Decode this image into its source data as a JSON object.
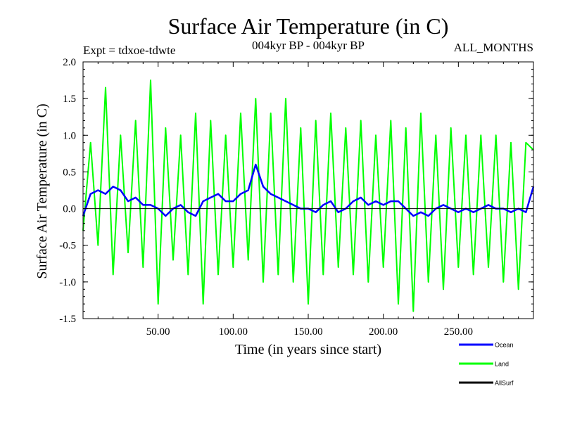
{
  "chart_data": {
    "type": "line",
    "title": "Surface Air Temperature (in C)",
    "experiment_label": "Expt = tdxoe-tdwte",
    "period_label": "004kyr BP - 004kyr BP",
    "season_label": "ALL_MONTHS",
    "xlabel": "Time (in years since start)",
    "ylabel": "Surface Air Temperature (in C)",
    "xlim": [
      0,
      300
    ],
    "ylim": [
      -1.5,
      2.0
    ],
    "x_ticks": [
      50,
      100,
      150,
      200,
      250
    ],
    "x_tick_labels": [
      "50.00",
      "100.00",
      "150.00",
      "200.00",
      "250.00"
    ],
    "y_ticks": [
      -1.5,
      -1.0,
      -0.5,
      0.0,
      0.5,
      1.0,
      1.5,
      2.0
    ],
    "y_tick_labels": [
      "-1.5",
      "-1.0",
      "-0.5",
      "0.0",
      "0.5",
      "1.0",
      "1.5",
      "2.0"
    ],
    "zero_line": true,
    "legend_position": "bottom-right",
    "series": [
      {
        "name": "Ocean",
        "color": "#0000ff",
        "x": [
          0,
          5,
          10,
          15,
          20,
          25,
          30,
          35,
          40,
          45,
          50,
          55,
          60,
          65,
          70,
          75,
          80,
          85,
          90,
          95,
          100,
          105,
          110,
          115,
          120,
          125,
          130,
          135,
          140,
          145,
          150,
          155,
          160,
          165,
          170,
          175,
          180,
          185,
          190,
          195,
          200,
          205,
          210,
          215,
          220,
          225,
          230,
          235,
          240,
          245,
          250,
          255,
          260,
          265,
          270,
          275,
          280,
          285,
          290,
          295,
          300
        ],
        "values": [
          -0.1,
          0.2,
          0.25,
          0.2,
          0.3,
          0.25,
          0.1,
          0.15,
          0.05,
          0.05,
          0.0,
          -0.1,
          0.0,
          0.05,
          -0.05,
          -0.1,
          0.1,
          0.15,
          0.2,
          0.1,
          0.1,
          0.2,
          0.25,
          0.6,
          0.3,
          0.2,
          0.15,
          0.1,
          0.05,
          0.0,
          0.0,
          -0.05,
          0.05,
          0.1,
          -0.05,
          0.0,
          0.1,
          0.15,
          0.05,
          0.1,
          0.05,
          0.1,
          0.1,
          0.0,
          -0.1,
          -0.05,
          -0.1,
          0.0,
          0.05,
          0.0,
          -0.05,
          0.0,
          -0.05,
          0.0,
          0.05,
          0.0,
          0.0,
          -0.05,
          0.0,
          -0.05,
          0.3
        ]
      },
      {
        "name": "Land",
        "color": "#00ff00",
        "x": [
          0,
          5,
          10,
          15,
          20,
          25,
          30,
          35,
          40,
          45,
          50,
          55,
          60,
          65,
          70,
          75,
          80,
          85,
          90,
          95,
          100,
          105,
          110,
          115,
          120,
          125,
          130,
          135,
          140,
          145,
          150,
          155,
          160,
          165,
          170,
          175,
          180,
          185,
          190,
          195,
          200,
          205,
          210,
          215,
          220,
          225,
          230,
          235,
          240,
          245,
          250,
          255,
          260,
          265,
          270,
          275,
          280,
          285,
          290,
          295,
          300
        ],
        "values": [
          -0.3,
          0.9,
          -0.5,
          1.65,
          -0.9,
          1.0,
          -0.6,
          1.2,
          -0.8,
          1.75,
          -1.3,
          1.1,
          -0.7,
          1.0,
          -0.9,
          1.3,
          -1.3,
          1.2,
          -0.9,
          1.0,
          -0.8,
          1.3,
          -0.7,
          1.5,
          -1.0,
          1.3,
          -0.9,
          1.5,
          -1.0,
          1.1,
          -1.3,
          1.2,
          -0.9,
          1.3,
          -0.8,
          1.1,
          -0.9,
          1.2,
          -1.0,
          1.0,
          -0.8,
          1.2,
          -1.3,
          1.1,
          -1.4,
          1.3,
          -1.0,
          1.0,
          -1.1,
          1.1,
          -0.8,
          1.0,
          -0.9,
          1.0,
          -0.8,
          1.0,
          -1.0,
          0.9,
          -1.1,
          0.9,
          0.8
        ]
      },
      {
        "name": "AllSurf",
        "color": "#000000",
        "x": [],
        "values": []
      }
    ]
  }
}
